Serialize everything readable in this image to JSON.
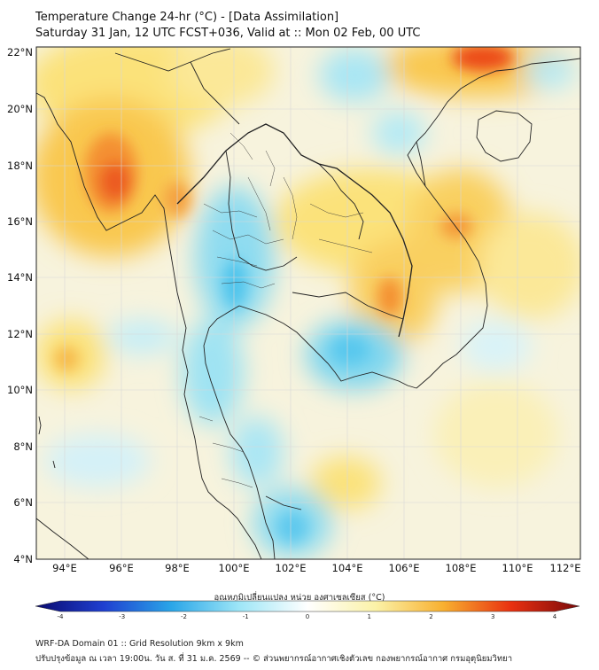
{
  "header": {
    "title_line1": "Temperature Change 24-hr (°C) - [Data Assimilation]",
    "title_line2": "Saturday 31 Jan, 12 UTC FCST+036, Valid at :: Mon 02 Feb, 00 UTC"
  },
  "map": {
    "lat_ticks": [
      "22°N",
      "20°N",
      "18°N",
      "16°N",
      "14°N",
      "12°N",
      "10°N",
      "8°N",
      "6°N",
      "4°N"
    ],
    "lon_ticks": [
      "94°E",
      "96°E",
      "98°E",
      "100°E",
      "102°E",
      "104°E",
      "106°E",
      "108°E",
      "110°E",
      "112°E"
    ],
    "region": "Mainland Southeast Asia (Thailand centered)",
    "background_color": "#f7f3dd"
  },
  "colorbar": {
    "title": "อุณหภูมิเปลี่ยนแปลง หน่วย องศาเซลเซียส (°C)",
    "tick_labels": [
      "-4",
      "-3",
      "-2",
      "-1",
      "0",
      "1",
      "2",
      "3",
      "4"
    ],
    "colors": {
      "minus4": "#0a0a6e",
      "minus3": "#1f3fd0",
      "minus2": "#2aa6e8",
      "minus1": "#9ee6f7",
      "zero": "#ffffff",
      "plus1": "#fbf2a8",
      "plus2": "#f8b030",
      "plus3": "#e83010",
      "plus4": "#7a0a0a"
    }
  },
  "footer": {
    "line1": "WRF-DA Domain 01 :: Grid Resolution 9km x 9km",
    "line2": "ปรับปรุงข้อมูล ณ เวลา 19:00น. วัน ส. ที่ 31 ม.ค. 2569 -- © ส่วนพยากรณ์อากาศเชิงตัวเลข กองพยากรณ์อากาศ กรมอุตุนิยมวิทยา"
  }
}
